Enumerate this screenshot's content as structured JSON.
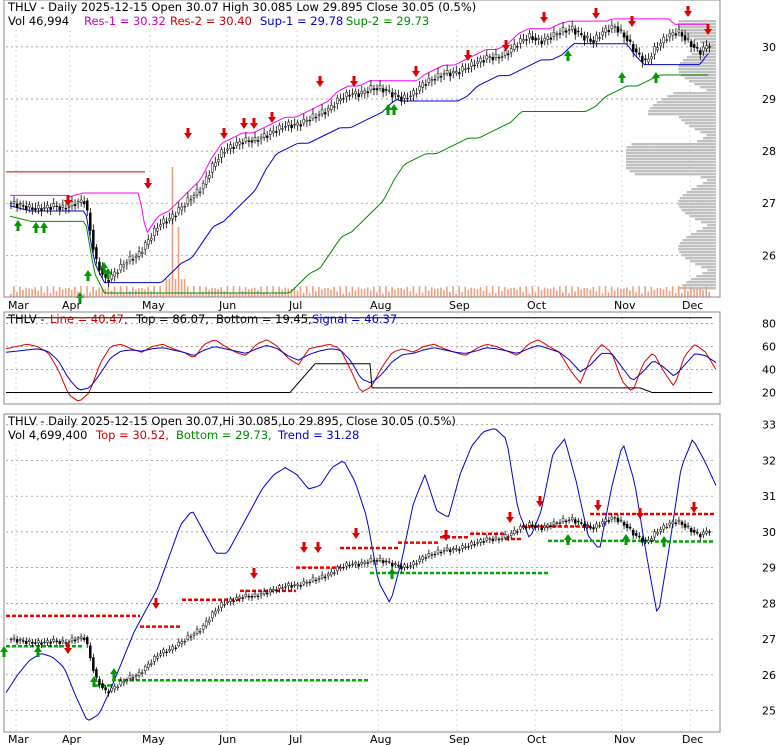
{
  "chart_data": [
    {
      "type": "candlestick",
      "panel": "price",
      "header": {
        "ticker_line": "THLV - Daily 2025-12-15 Open 30.07  High 30.085  Low 29.895  Close 30.05 (0.5%)",
        "vol": "Vol 46,994",
        "res1": "Res-1 = 30.32",
        "res2": "Res-2 = 30.40",
        "sup1": "Sup-1 = 29.78",
        "sup2": "Sup-2 = 29.73"
      },
      "x_labels": [
        "Mar",
        "Apr",
        "May",
        "Jun",
        "Jul",
        "Aug",
        "Sep",
        "Oct",
        "Nov",
        "Dec"
      ],
      "y_ticks": [
        26,
        27,
        28,
        29,
        30
      ],
      "ylim": [
        25.2,
        30.9
      ],
      "close_approx": [
        27.0,
        26.95,
        26.9,
        26.9,
        26.95,
        26.9,
        27.0,
        27.05,
        25.9,
        25.5,
        25.7,
        25.9,
        26.0,
        26.3,
        26.6,
        26.7,
        26.9,
        27.1,
        27.3,
        27.7,
        28.0,
        28.1,
        28.2,
        28.2,
        28.3,
        28.4,
        28.5,
        28.5,
        28.6,
        28.7,
        28.8,
        29.0,
        29.1,
        29.1,
        29.2,
        29.2,
        29.1,
        29.0,
        29.1,
        29.3,
        29.4,
        29.5,
        29.5,
        29.6,
        29.7,
        29.8,
        29.8,
        29.9,
        30.1,
        30.2,
        30.1,
        30.2,
        30.3,
        30.35,
        30.2,
        30.1,
        30.3,
        30.4,
        30.2,
        29.9,
        29.7,
        30.0,
        30.2,
        30.3,
        30.1,
        29.9,
        30.05
      ],
      "volume_spikes_note": "",
      "colors": {
        "res1": "#ff00ff",
        "res2": "#cc0000",
        "sup1": "#0000cc",
        "sup2": "#008800",
        "res_line": "#ff00ff",
        "sup1_line": "#0000cc",
        "sup2_line": "#008800",
        "stop_line": "#cc0000"
      }
    },
    {
      "type": "line",
      "panel": "oscillator",
      "header": {
        "ticker": "THLV - ",
        "line": "Line = 40.47,",
        "top": "Top = 86.07,",
        "bottom": "Bottom = 19.45,",
        "signal": "Signal = 46.37"
      },
      "y_ticks": [
        20,
        40,
        60,
        80
      ],
      "ylim": [
        10,
        90
      ],
      "line_values": [
        58,
        60,
        62,
        60,
        55,
        40,
        18,
        12,
        20,
        45,
        60,
        62,
        58,
        55,
        60,
        62,
        58,
        55,
        50,
        62,
        66,
        60,
        55,
        52,
        62,
        66,
        60,
        50,
        44,
        58,
        60,
        62,
        58,
        40,
        20,
        25,
        42,
        55,
        58,
        55,
        60,
        62,
        58,
        55,
        52,
        58,
        62,
        60,
        56,
        52,
        62,
        66,
        60,
        55,
        40,
        28,
        50,
        62,
        55,
        30,
        20,
        45,
        55,
        38,
        25,
        52,
        62,
        55,
        40
      ],
      "signal_values": [
        55,
        56,
        57,
        58,
        56,
        48,
        32,
        22,
        24,
        36,
        50,
        56,
        57,
        56,
        58,
        59,
        57,
        55,
        52,
        57,
        60,
        58,
        56,
        54,
        58,
        61,
        58,
        52,
        48,
        53,
        56,
        58,
        57,
        48,
        32,
        28,
        36,
        47,
        53,
        54,
        57,
        59,
        57,
        55,
        54,
        56,
        59,
        58,
        56,
        54,
        58,
        61,
        58,
        55,
        48,
        38,
        44,
        54,
        54,
        42,
        30,
        38,
        48,
        42,
        34,
        44,
        54,
        52,
        46
      ],
      "colors": {
        "line": "#dd0000",
        "signal": "#0000cc",
        "top": "#000000",
        "bottom": "#000000"
      }
    },
    {
      "type": "candlestick",
      "panel": "trend",
      "header": {
        "ticker_line": "THLV - Daily 2025-12-15 Open 30.07,Hi 30.085,Lo 29.895, Close 30.05 (0.5%)",
        "vol": "Vol 4,699,400",
        "top": "Top = 30.52,",
        "bottom": "Bottom = 29.73,",
        "trend": "Trend = 31.28"
      },
      "x_labels": [
        "Mar",
        "Apr",
        "May",
        "Jun",
        "Jul",
        "Aug",
        "Sep",
        "Oct",
        "Nov",
        "Dec"
      ],
      "y_ticks": [
        25,
        26,
        27,
        28,
        29,
        30,
        31,
        32,
        33
      ],
      "ylim": [
        24.4,
        33.3
      ],
      "trend_values": [
        25.5,
        26.0,
        26.4,
        26.6,
        26.5,
        26.2,
        25.4,
        24.7,
        24.9,
        25.6,
        26.4,
        27.2,
        27.8,
        28.4,
        29.3,
        30.2,
        30.6,
        30.0,
        29.4,
        29.4,
        30.0,
        30.6,
        31.2,
        31.6,
        31.8,
        31.6,
        31.2,
        31.3,
        31.8,
        32.0,
        31.4,
        30.4,
        28.6,
        28.0,
        29.2,
        30.8,
        31.6,
        30.6,
        30.4,
        31.6,
        32.4,
        32.8,
        32.9,
        32.6,
        30.6,
        29.8,
        30.6,
        32.2,
        32.6,
        31.4,
        29.9,
        29.5,
        31.2,
        32.5,
        31.4,
        29.4,
        27.6,
        29.6,
        31.8,
        32.6,
        32.0,
        31.3
      ],
      "colors": {
        "trend": "#0000cc",
        "top_dash": "#ee0000",
        "bottom_dash": "#00aa00"
      }
    }
  ]
}
